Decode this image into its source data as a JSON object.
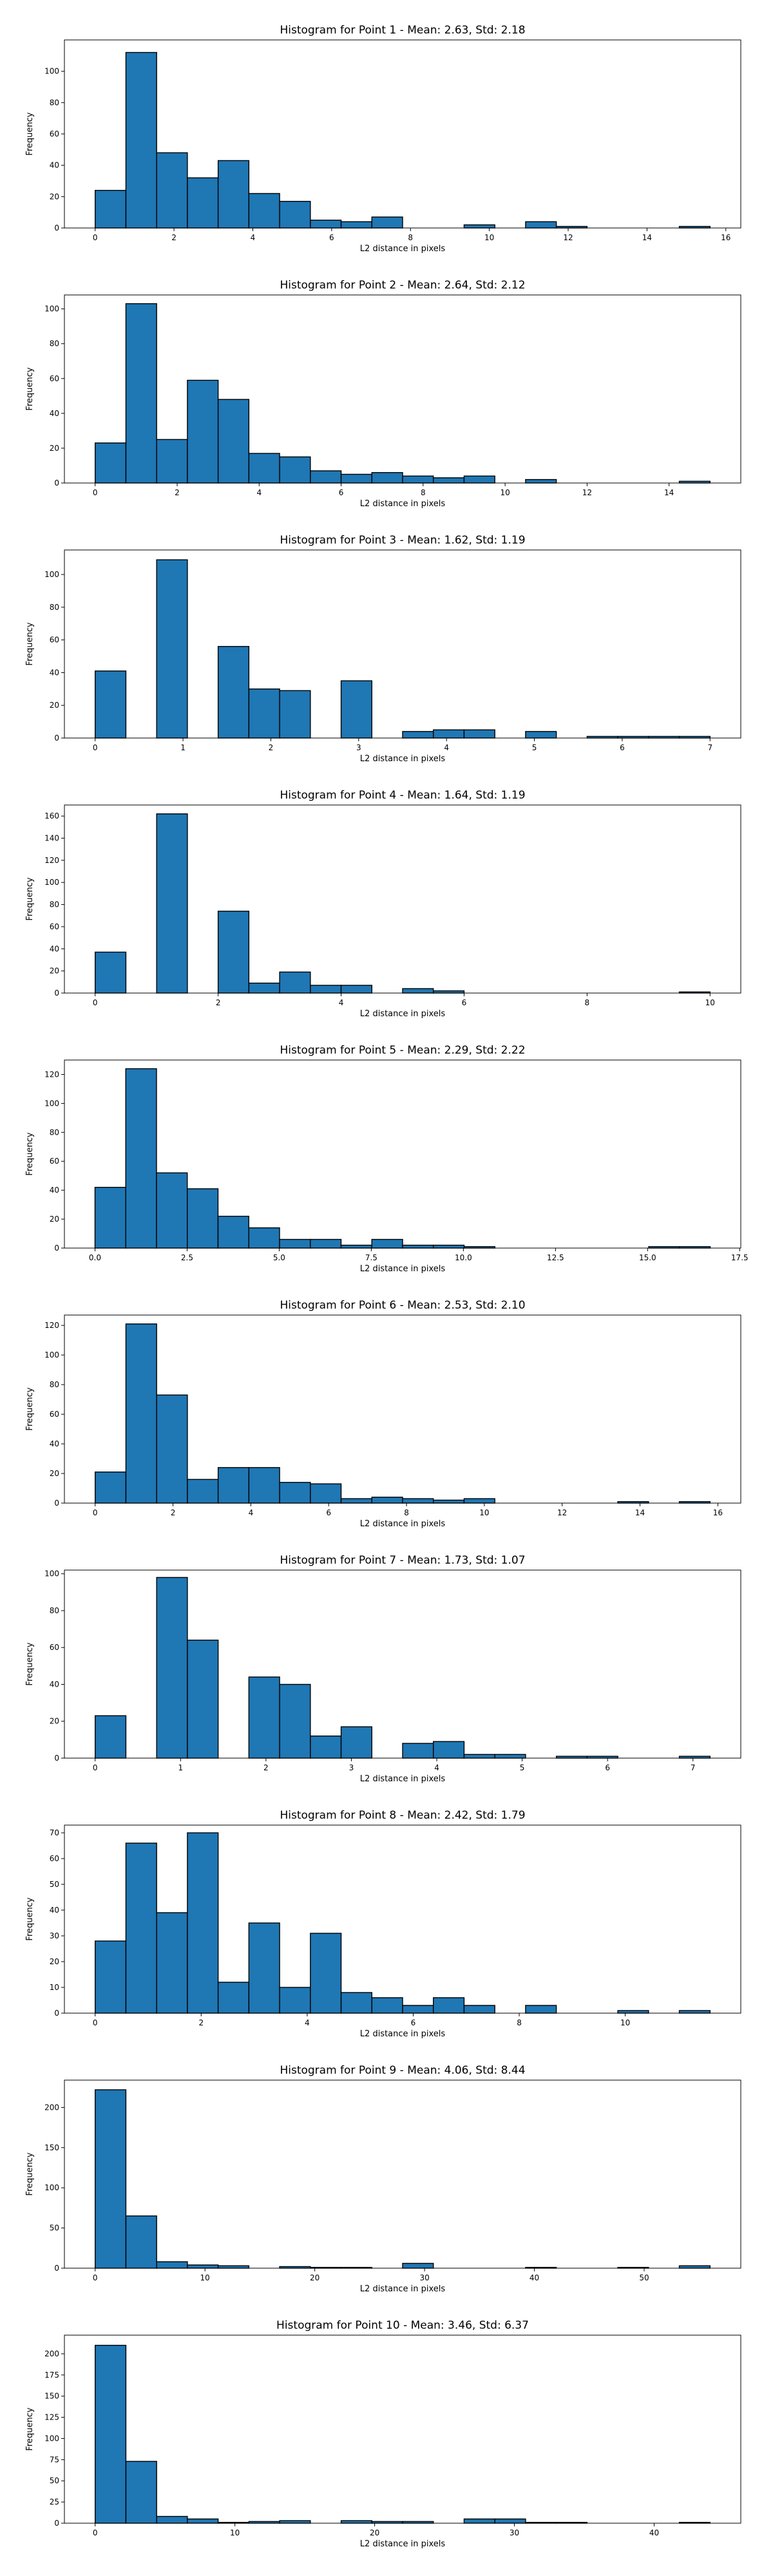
{
  "chart_data": [
    {
      "type": "bar",
      "title": "Histogram for Point 1 - Mean: 2.63, Std: 2.18",
      "xlabel": "L2 distance in pixels",
      "ylabel": "Frequency",
      "xlim": [
        -0.78,
        16.38
      ],
      "ylim": [
        0,
        120
      ],
      "xticks": [
        0,
        2,
        4,
        6,
        8,
        10,
        12,
        14,
        16
      ],
      "yticks": [
        0,
        20,
        40,
        60,
        80,
        100
      ],
      "bin_edges": [
        0.0,
        0.78,
        1.56,
        2.34,
        3.12,
        3.9,
        4.68,
        5.46,
        6.24,
        7.02,
        7.8,
        8.58,
        9.36,
        10.14,
        10.92,
        11.7,
        12.48,
        13.26,
        14.04,
        14.82,
        15.6
      ],
      "values": [
        24,
        112,
        48,
        32,
        43,
        22,
        17,
        5,
        4,
        7,
        0,
        0,
        2,
        0,
        4,
        1,
        0,
        0,
        0,
        1
      ],
      "bar_color": "#1f77b4",
      "edge_color": "#000000",
      "grid": false
    },
    {
      "type": "bar",
      "title": "Histogram for Point 2 - Mean: 2.64, Std: 2.12",
      "xlabel": "L2 distance in pixels",
      "ylabel": "Frequency",
      "xlim": [
        -0.75,
        15.75
      ],
      "ylim": [
        0,
        108
      ],
      "xticks": [
        0,
        2,
        4,
        6,
        8,
        10,
        12,
        14
      ],
      "yticks": [
        0,
        20,
        40,
        60,
        80,
        100
      ],
      "bin_edges": [
        0.0,
        0.75,
        1.5,
        2.25,
        3.0,
        3.75,
        4.5,
        5.25,
        6.0,
        6.75,
        7.5,
        8.25,
        9.0,
        9.75,
        10.5,
        11.25,
        12.0,
        12.75,
        13.5,
        14.25,
        15.0
      ],
      "values": [
        23,
        103,
        25,
        59,
        48,
        17,
        15,
        7,
        5,
        6,
        4,
        3,
        4,
        0,
        2,
        0,
        0,
        0,
        0,
        1
      ],
      "bar_color": "#1f77b4",
      "edge_color": "#000000",
      "grid": false
    },
    {
      "type": "bar",
      "title": "Histogram for Point 3 - Mean: 1.62, Std: 1.19",
      "xlabel": "L2 distance in pixels",
      "ylabel": "Frequency",
      "xlim": [
        -0.35,
        7.35
      ],
      "ylim": [
        0,
        115
      ],
      "xticks": [
        0,
        1,
        2,
        3,
        4,
        5,
        6,
        7
      ],
      "yticks": [
        0,
        20,
        40,
        60,
        80,
        100
      ],
      "bin_edges": [
        0.0,
        0.35,
        0.7,
        1.05,
        1.4,
        1.75,
        2.1,
        2.45,
        2.8,
        3.15,
        3.5,
        3.85,
        4.2,
        4.55,
        4.9,
        5.25,
        5.6,
        5.95,
        6.3,
        6.65,
        7.0
      ],
      "values": [
        41,
        0,
        109,
        0,
        56,
        30,
        29,
        0,
        35,
        0,
        4,
        5,
        5,
        0,
        4,
        0,
        1,
        1,
        1,
        1
      ],
      "bar_color": "#1f77b4",
      "edge_color": "#000000",
      "grid": false
    },
    {
      "type": "bar",
      "title": "Histogram for Point 4 - Mean: 1.64, Std: 1.19",
      "xlabel": "L2 distance in pixels",
      "ylabel": "Frequency",
      "xlim": [
        -0.5,
        10.5
      ],
      "ylim": [
        0,
        170
      ],
      "xticks": [
        0,
        2,
        4,
        6,
        8,
        10
      ],
      "yticks": [
        0,
        20,
        40,
        60,
        80,
        100,
        120,
        140,
        160
      ],
      "bin_edges": [
        0.0,
        0.5,
        1.0,
        1.5,
        2.0,
        2.5,
        3.0,
        3.5,
        4.0,
        4.5,
        5.0,
        5.5,
        6.0,
        6.5,
        7.0,
        7.5,
        8.0,
        8.5,
        9.0,
        9.5,
        10.0
      ],
      "values": [
        37,
        0,
        162,
        0,
        74,
        9,
        19,
        7,
        7,
        0,
        4,
        2,
        0,
        0,
        0,
        0,
        0,
        0,
        0,
        1
      ],
      "bar_color": "#1f77b4",
      "edge_color": "#000000",
      "grid": false
    },
    {
      "type": "bar",
      "title": "Histogram for Point 5 - Mean: 2.29, Std: 2.22",
      "xlabel": "L2 distance in pixels",
      "ylabel": "Frequency",
      "xlim": [
        -0.83,
        17.53
      ],
      "ylim": [
        0,
        130
      ],
      "xticks": [
        0.0,
        2.5,
        5.0,
        7.5,
        10.0,
        12.5,
        15.0,
        17.5
      ],
      "xtick_labels": [
        "0.0",
        "2.5",
        "5.0",
        "7.5",
        "10.0",
        "12.5",
        "15.0",
        "17.5"
      ],
      "yticks": [
        0,
        20,
        40,
        60,
        80,
        100,
        120
      ],
      "bin_edges": [
        0.0,
        0.835,
        1.67,
        2.505,
        3.34,
        4.175,
        5.01,
        5.845,
        6.68,
        7.515,
        8.35,
        9.185,
        10.02,
        10.855,
        11.69,
        12.525,
        13.36,
        14.195,
        15.03,
        15.865,
        16.7
      ],
      "values": [
        42,
        124,
        52,
        41,
        22,
        14,
        6,
        6,
        2,
        6,
        2,
        2,
        1,
        0,
        0,
        0,
        0,
        0,
        1,
        1
      ],
      "bar_color": "#1f77b4",
      "edge_color": "#000000",
      "grid": false
    },
    {
      "type": "bar",
      "title": "Histogram for Point 6 - Mean: 2.53, Std: 2.10",
      "xlabel": "L2 distance in pixels",
      "ylabel": "Frequency",
      "xlim": [
        -0.79,
        16.59
      ],
      "ylim": [
        0,
        127
      ],
      "xticks": [
        0,
        2,
        4,
        6,
        8,
        10,
        12,
        14,
        16
      ],
      "yticks": [
        0,
        20,
        40,
        60,
        80,
        100,
        120
      ],
      "bin_edges": [
        0.0,
        0.79,
        1.58,
        2.37,
        3.16,
        3.95,
        4.74,
        5.53,
        6.32,
        7.11,
        7.9,
        8.69,
        9.48,
        10.27,
        11.06,
        11.85,
        12.64,
        13.43,
        14.22,
        15.01,
        15.8
      ],
      "values": [
        21,
        121,
        73,
        16,
        24,
        24,
        14,
        13,
        3,
        4,
        3,
        2,
        3,
        0,
        0,
        0,
        0,
        1,
        0,
        1
      ],
      "bar_color": "#1f77b4",
      "edge_color": "#000000",
      "grid": false
    },
    {
      "type": "bar",
      "title": "Histogram for Point 7 - Mean: 1.73, Std: 1.07",
      "xlabel": "L2 distance in pixels",
      "ylabel": "Frequency",
      "xlim": [
        -0.36,
        7.56
      ],
      "ylim": [
        0,
        102
      ],
      "xticks": [
        0,
        1,
        2,
        3,
        4,
        5,
        6,
        7
      ],
      "yticks": [
        0,
        20,
        40,
        60,
        80,
        100
      ],
      "bin_edges": [
        0.0,
        0.36,
        0.72,
        1.08,
        1.44,
        1.8,
        2.16,
        2.52,
        2.88,
        3.24,
        3.6,
        3.96,
        4.32,
        4.68,
        5.04,
        5.4,
        5.76,
        6.12,
        6.48,
        6.84,
        7.2
      ],
      "values": [
        23,
        0,
        98,
        64,
        0,
        44,
        40,
        12,
        17,
        0,
        8,
        9,
        2,
        2,
        0,
        1,
        1,
        0,
        0,
        1
      ],
      "bar_color": "#1f77b4",
      "edge_color": "#000000",
      "grid": false
    },
    {
      "type": "bar",
      "title": "Histogram for Point 8 - Mean: 2.42, Std: 1.79",
      "xlabel": "L2 distance in pixels",
      "ylabel": "Frequency",
      "xlim": [
        -0.58,
        12.18
      ],
      "ylim": [
        0,
        73
      ],
      "xticks": [
        0,
        2,
        4,
        6,
        8,
        10
      ],
      "yticks": [
        0,
        10,
        20,
        30,
        40,
        50,
        60,
        70
      ],
      "bin_edges": [
        0.0,
        0.58,
        1.16,
        1.74,
        2.32,
        2.9,
        3.48,
        4.06,
        4.64,
        5.22,
        5.8,
        6.38,
        6.96,
        7.54,
        8.12,
        8.7,
        9.28,
        9.86,
        10.44,
        11.02,
        11.6
      ],
      "values": [
        28,
        66,
        39,
        70,
        12,
        35,
        10,
        31,
        8,
        6,
        3,
        6,
        3,
        0,
        3,
        0,
        0,
        1,
        0,
        1
      ],
      "bar_color": "#1f77b4",
      "edge_color": "#000000",
      "grid": false
    },
    {
      "type": "bar",
      "title": "Histogram for Point 9 - Mean: 4.06, Std: 8.44",
      "xlabel": "L2 distance in pixels",
      "ylabel": "Frequency",
      "xlim": [
        -2.8,
        58.8
      ],
      "ylim": [
        0,
        234
      ],
      "xticks": [
        0,
        10,
        20,
        30,
        40,
        50
      ],
      "yticks": [
        0,
        50,
        100,
        150,
        200
      ],
      "bin_edges": [
        0.0,
        2.8,
        5.6,
        8.4,
        11.2,
        14.0,
        16.8,
        19.6,
        22.4,
        25.2,
        28.0,
        30.8,
        33.6,
        36.4,
        39.2,
        42.0,
        44.8,
        47.6,
        50.4,
        53.2,
        56.0
      ],
      "values": [
        222,
        65,
        8,
        4,
        3,
        0,
        2,
        1,
        1,
        0,
        6,
        0,
        0,
        0,
        1,
        0,
        0,
        1,
        0,
        3
      ],
      "bar_color": "#1f77b4",
      "edge_color": "#000000",
      "grid": false
    },
    {
      "type": "bar",
      "title": "Histogram for Point 10 - Mean: 3.46, Std: 6.37",
      "xlabel": "L2 distance in pixels",
      "ylabel": "Frequency",
      "xlim": [
        -2.2,
        46.2
      ],
      "ylim": [
        0,
        222
      ],
      "xticks": [
        0,
        10,
        20,
        30,
        40
      ],
      "yticks": [
        0,
        25,
        50,
        75,
        100,
        125,
        150,
        175,
        200
      ],
      "bin_edges": [
        0.0,
        2.2,
        4.4,
        6.6,
        8.8,
        11.0,
        13.2,
        15.4,
        17.6,
        19.8,
        22.0,
        24.2,
        26.4,
        28.6,
        30.8,
        33.0,
        35.2,
        37.4,
        39.6,
        41.8,
        44.0
      ],
      "values": [
        210,
        73,
        8,
        5,
        1,
        2,
        3,
        0,
        3,
        2,
        2,
        0,
        5,
        5,
        1,
        1,
        0,
        0,
        0,
        1
      ],
      "bar_color": "#1f77b4",
      "edge_color": "#000000",
      "grid": false
    }
  ]
}
